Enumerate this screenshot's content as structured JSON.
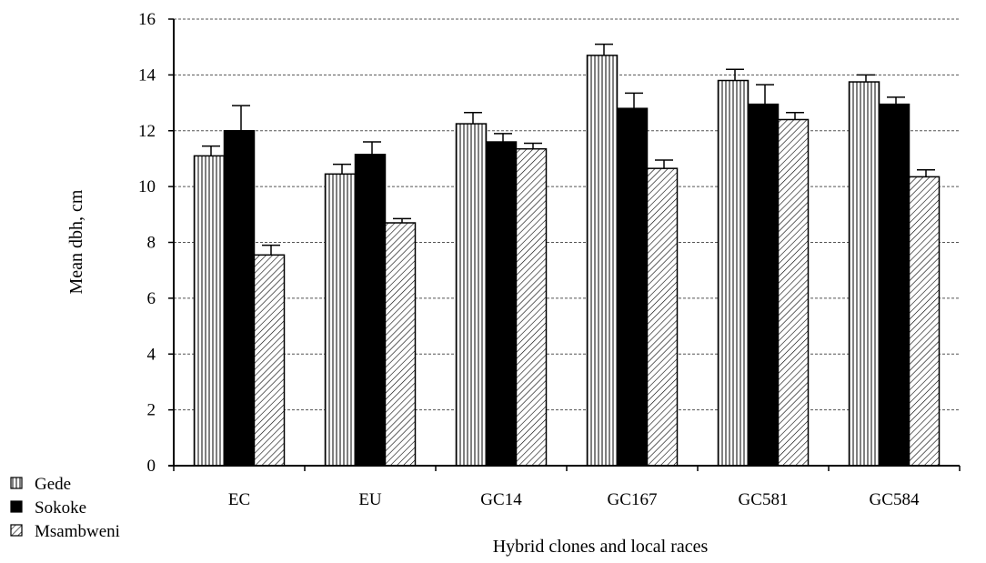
{
  "chart_data": {
    "type": "bar",
    "title": "",
    "xlabel": "Hybrid clones and local races",
    "ylabel": "Mean dbh, cm",
    "ylim": [
      0,
      16
    ],
    "yticks": [
      "0",
      "2",
      "4",
      "6",
      "8",
      "10",
      "12",
      "14",
      "16"
    ],
    "grid": "horizontal dashed",
    "legend_placement": "bottom-left",
    "categories": [
      "EC",
      "EU",
      "GC14",
      "GC167",
      "GC581",
      "GC584"
    ],
    "series": [
      {
        "name": "Gede",
        "pattern": "vertical-lines",
        "values": [
          11.1,
          10.45,
          12.25,
          14.7,
          13.8,
          13.75
        ],
        "errors": [
          0.35,
          0.35,
          0.4,
          0.4,
          0.4,
          0.25
        ]
      },
      {
        "name": "Sokoke",
        "pattern": "solid-black",
        "values": [
          12.0,
          11.15,
          11.6,
          12.8,
          12.95,
          12.95
        ],
        "errors": [
          0.9,
          0.45,
          0.3,
          0.55,
          0.7,
          0.25
        ]
      },
      {
        "name": "Msambweni",
        "pattern": "diagonal-lines",
        "values": [
          7.55,
          8.7,
          11.35,
          10.65,
          12.4,
          10.35
        ],
        "errors": [
          0.35,
          0.15,
          0.2,
          0.3,
          0.25,
          0.25
        ]
      }
    ]
  },
  "colors": {
    "axis": "#000000",
    "grid": "#555555",
    "bar_fill": "#ffffff",
    "solid": "#000000"
  }
}
